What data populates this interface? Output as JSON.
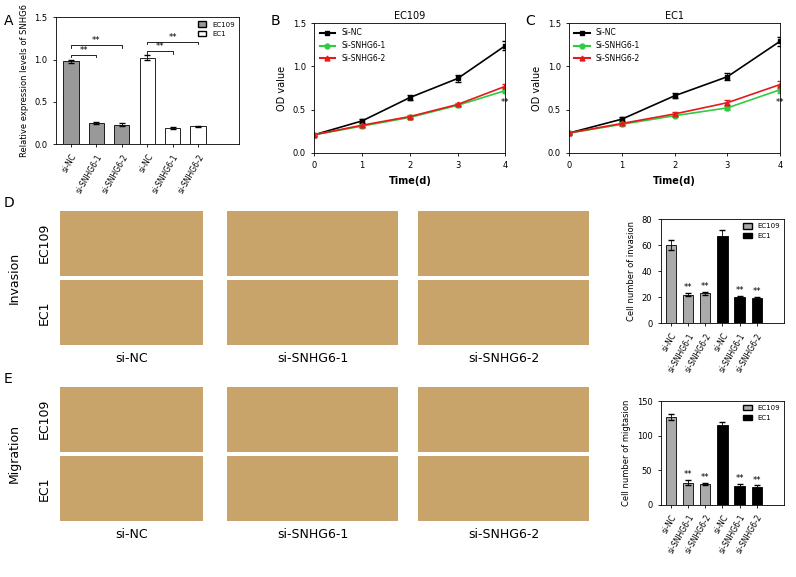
{
  "chart_data": [
    {
      "panel_label": "A",
      "type": "bar",
      "ylabel": "Relative expression levels of SNHG6",
      "categories": [
        "si-NC",
        "si-SNHG6-1",
        "si-SNHG6-2",
        "si-NC",
        "si-SNHG6-1",
        "si-SNHG6-2"
      ],
      "series": [
        {
          "name": "EC109",
          "color": "#999999",
          "values": [
            0.98,
            0.25,
            0.23,
            null,
            null,
            null
          ],
          "errors": [
            0.02,
            0.01,
            0.02,
            null,
            null,
            null
          ]
        },
        {
          "name": "EC1",
          "color": "#ffffff",
          "values": [
            null,
            null,
            null,
            1.02,
            0.19,
            0.21
          ],
          "errors": [
            null,
            null,
            null,
            0.03,
            0.01,
            0.01
          ]
        }
      ],
      "ylim": [
        0,
        1.5
      ],
      "yticks": [
        {
          "value": 0,
          "label": "0.0"
        },
        {
          "value": 0.5,
          "label": "0.5"
        },
        {
          "value": 1.0,
          "label": "1.0"
        },
        {
          "value": 1.5,
          "label": "1.5"
        }
      ],
      "brackets": [
        {
          "text": "**",
          "x1": 0,
          "x2": 1,
          "y": 1.06
        },
        {
          "text": "**",
          "x1": 0,
          "x2": 2,
          "y": 1.17
        },
        {
          "text": "**",
          "x1": 3,
          "x2": 4,
          "y": 1.1
        },
        {
          "text": "**",
          "x1": 3,
          "x2": 5,
          "y": 1.21
        }
      ],
      "legend": "upper right"
    },
    {
      "panel_label": "B",
      "type": "line",
      "title": "EC109",
      "xlabel": "Time(d)",
      "ylabel": "OD value",
      "x": [
        0,
        1,
        2,
        3,
        4
      ],
      "series": [
        {
          "name": "Si-NC",
          "color": "#000000",
          "marker": "square",
          "values": [
            0.21,
            0.37,
            0.64,
            0.86,
            1.24
          ],
          "errors": [
            0.01,
            0.02,
            0.03,
            0.04,
            0.05
          ]
        },
        {
          "name": "Si-SNHG6-1",
          "color": "#2ecc40",
          "marker": "circle",
          "values": [
            0.21,
            0.31,
            0.41,
            0.55,
            0.72
          ],
          "errors": [
            0.01,
            0.02,
            0.02,
            0.02,
            0.03
          ]
        },
        {
          "name": "Si-SNHG6-2",
          "color": "#e41a1c",
          "marker": "triangle",
          "values": [
            0.21,
            0.32,
            0.42,
            0.56,
            0.77
          ],
          "errors": [
            0.01,
            0.02,
            0.02,
            0.02,
            0.03
          ]
        }
      ],
      "xlim": [
        0,
        4
      ],
      "xticks": [
        0,
        1,
        2,
        3,
        4
      ],
      "ylim": [
        0,
        1.5
      ],
      "yticks": [
        {
          "value": 0,
          "label": "0.0"
        },
        {
          "value": 0.5,
          "label": "0.5"
        },
        {
          "value": 1.0,
          "label": "1.0"
        },
        {
          "value": 1.5,
          "label": "1.5"
        }
      ],
      "annotations": [
        {
          "text": "**",
          "x": 4,
          "y": 0.64
        }
      ],
      "legend": "upper left"
    },
    {
      "panel_label": "C",
      "type": "line",
      "title": "EC1",
      "xlabel": "Time(d)",
      "ylabel": "OD value",
      "x": [
        0,
        1,
        2,
        3,
        4
      ],
      "series": [
        {
          "name": "Si-NC",
          "color": "#000000",
          "marker": "square",
          "values": [
            0.23,
            0.39,
            0.66,
            0.88,
            1.29
          ],
          "errors": [
            0.01,
            0.02,
            0.03,
            0.04,
            0.05
          ]
        },
        {
          "name": "Si-SNHG6-1",
          "color": "#2ecc40",
          "marker": "circle",
          "values": [
            0.23,
            0.33,
            0.43,
            0.52,
            0.73
          ],
          "errors": [
            0.01,
            0.02,
            0.02,
            0.02,
            0.04
          ]
        },
        {
          "name": "Si-SNHG6-2",
          "color": "#e41a1c",
          "marker": "triangle",
          "values": [
            0.23,
            0.34,
            0.45,
            0.58,
            0.79
          ],
          "errors": [
            0.01,
            0.02,
            0.02,
            0.03,
            0.04
          ]
        }
      ],
      "xlim": [
        0,
        4
      ],
      "xticks": [
        0,
        1,
        2,
        3,
        4
      ],
      "ylim": [
        0,
        1.5
      ],
      "yticks": [
        {
          "value": 0,
          "label": "0.0"
        },
        {
          "value": 0.5,
          "label": "0.5"
        },
        {
          "value": 1.0,
          "label": "1.0"
        },
        {
          "value": 1.5,
          "label": "1.5"
        }
      ],
      "annotations": [
        {
          "text": "**",
          "x": 4,
          "y": 0.64
        }
      ],
      "legend": "upper left"
    },
    {
      "panel_label": "D",
      "type": "bar",
      "ylabel": "Cell number of invasion",
      "categories": [
        "si-NC",
        "si-SNHG6-1",
        "si-SNHG6-2",
        "si-NC",
        "si-SNHG6-1",
        "si-SNHG6-2"
      ],
      "series": [
        {
          "name": "EC109",
          "color": "#aaaaaa",
          "values": [
            60,
            22,
            23,
            null,
            null,
            null
          ],
          "errors": [
            4,
            1,
            1,
            null,
            null,
            null
          ]
        },
        {
          "name": "EC1",
          "color": "#000000",
          "values": [
            null,
            null,
            null,
            67,
            20,
            19
          ],
          "errors": [
            null,
            null,
            null,
            5,
            1,
            1
          ]
        }
      ],
      "ylim": [
        0,
        80
      ],
      "yticks": [
        0,
        20,
        40,
        60,
        80
      ],
      "annotations": [
        {
          "text": "**",
          "x": 1,
          "y": 24
        },
        {
          "text": "**",
          "x": 2,
          "y": 25
        },
        {
          "text": "**",
          "x": 4,
          "y": 22
        },
        {
          "text": "**",
          "x": 5,
          "y": 21
        }
      ],
      "legend": "upper right"
    },
    {
      "panel_label": "E",
      "type": "bar",
      "ylabel": "Cell number of migtasion",
      "categories": [
        "si-NC",
        "si-SNHG6-1",
        "si-SNHG6-2",
        "si-NC",
        "si-SNHG6-1",
        "si-SNHG6-2"
      ],
      "series": [
        {
          "name": "EC109",
          "color": "#aaaaaa",
          "values": [
            127,
            32,
            30,
            null,
            null,
            null
          ],
          "errors": [
            4,
            4,
            2,
            null,
            null,
            null
          ]
        },
        {
          "name": "EC1",
          "color": "#000000",
          "values": [
            null,
            null,
            null,
            115,
            27,
            26
          ],
          "errors": [
            null,
            null,
            null,
            4,
            3,
            2
          ]
        }
      ],
      "ylim": [
        0,
        150
      ],
      "yticks": [
        0,
        50,
        100,
        150
      ],
      "annotations": [
        {
          "text": "**",
          "x": 1,
          "y": 37
        },
        {
          "text": "**",
          "x": 2,
          "y": 33
        },
        {
          "text": "**",
          "x": 4,
          "y": 31
        },
        {
          "text": "**",
          "x": 5,
          "y": 29
        }
      ],
      "legend": "upper right"
    }
  ],
  "image_panels": [
    {
      "panel_label": "D",
      "side_label": "Invasion",
      "rows": [
        "EC109",
        "EC1"
      ],
      "columns": [
        "si-NC",
        "si-SNHG6-1",
        "si-SNHG6-2"
      ]
    },
    {
      "panel_label": "E",
      "side_label": "Migration",
      "rows": [
        "EC109",
        "EC1"
      ],
      "columns": [
        "si-NC",
        "si-SNHG6-1",
        "si-SNHG6-2"
      ]
    }
  ]
}
